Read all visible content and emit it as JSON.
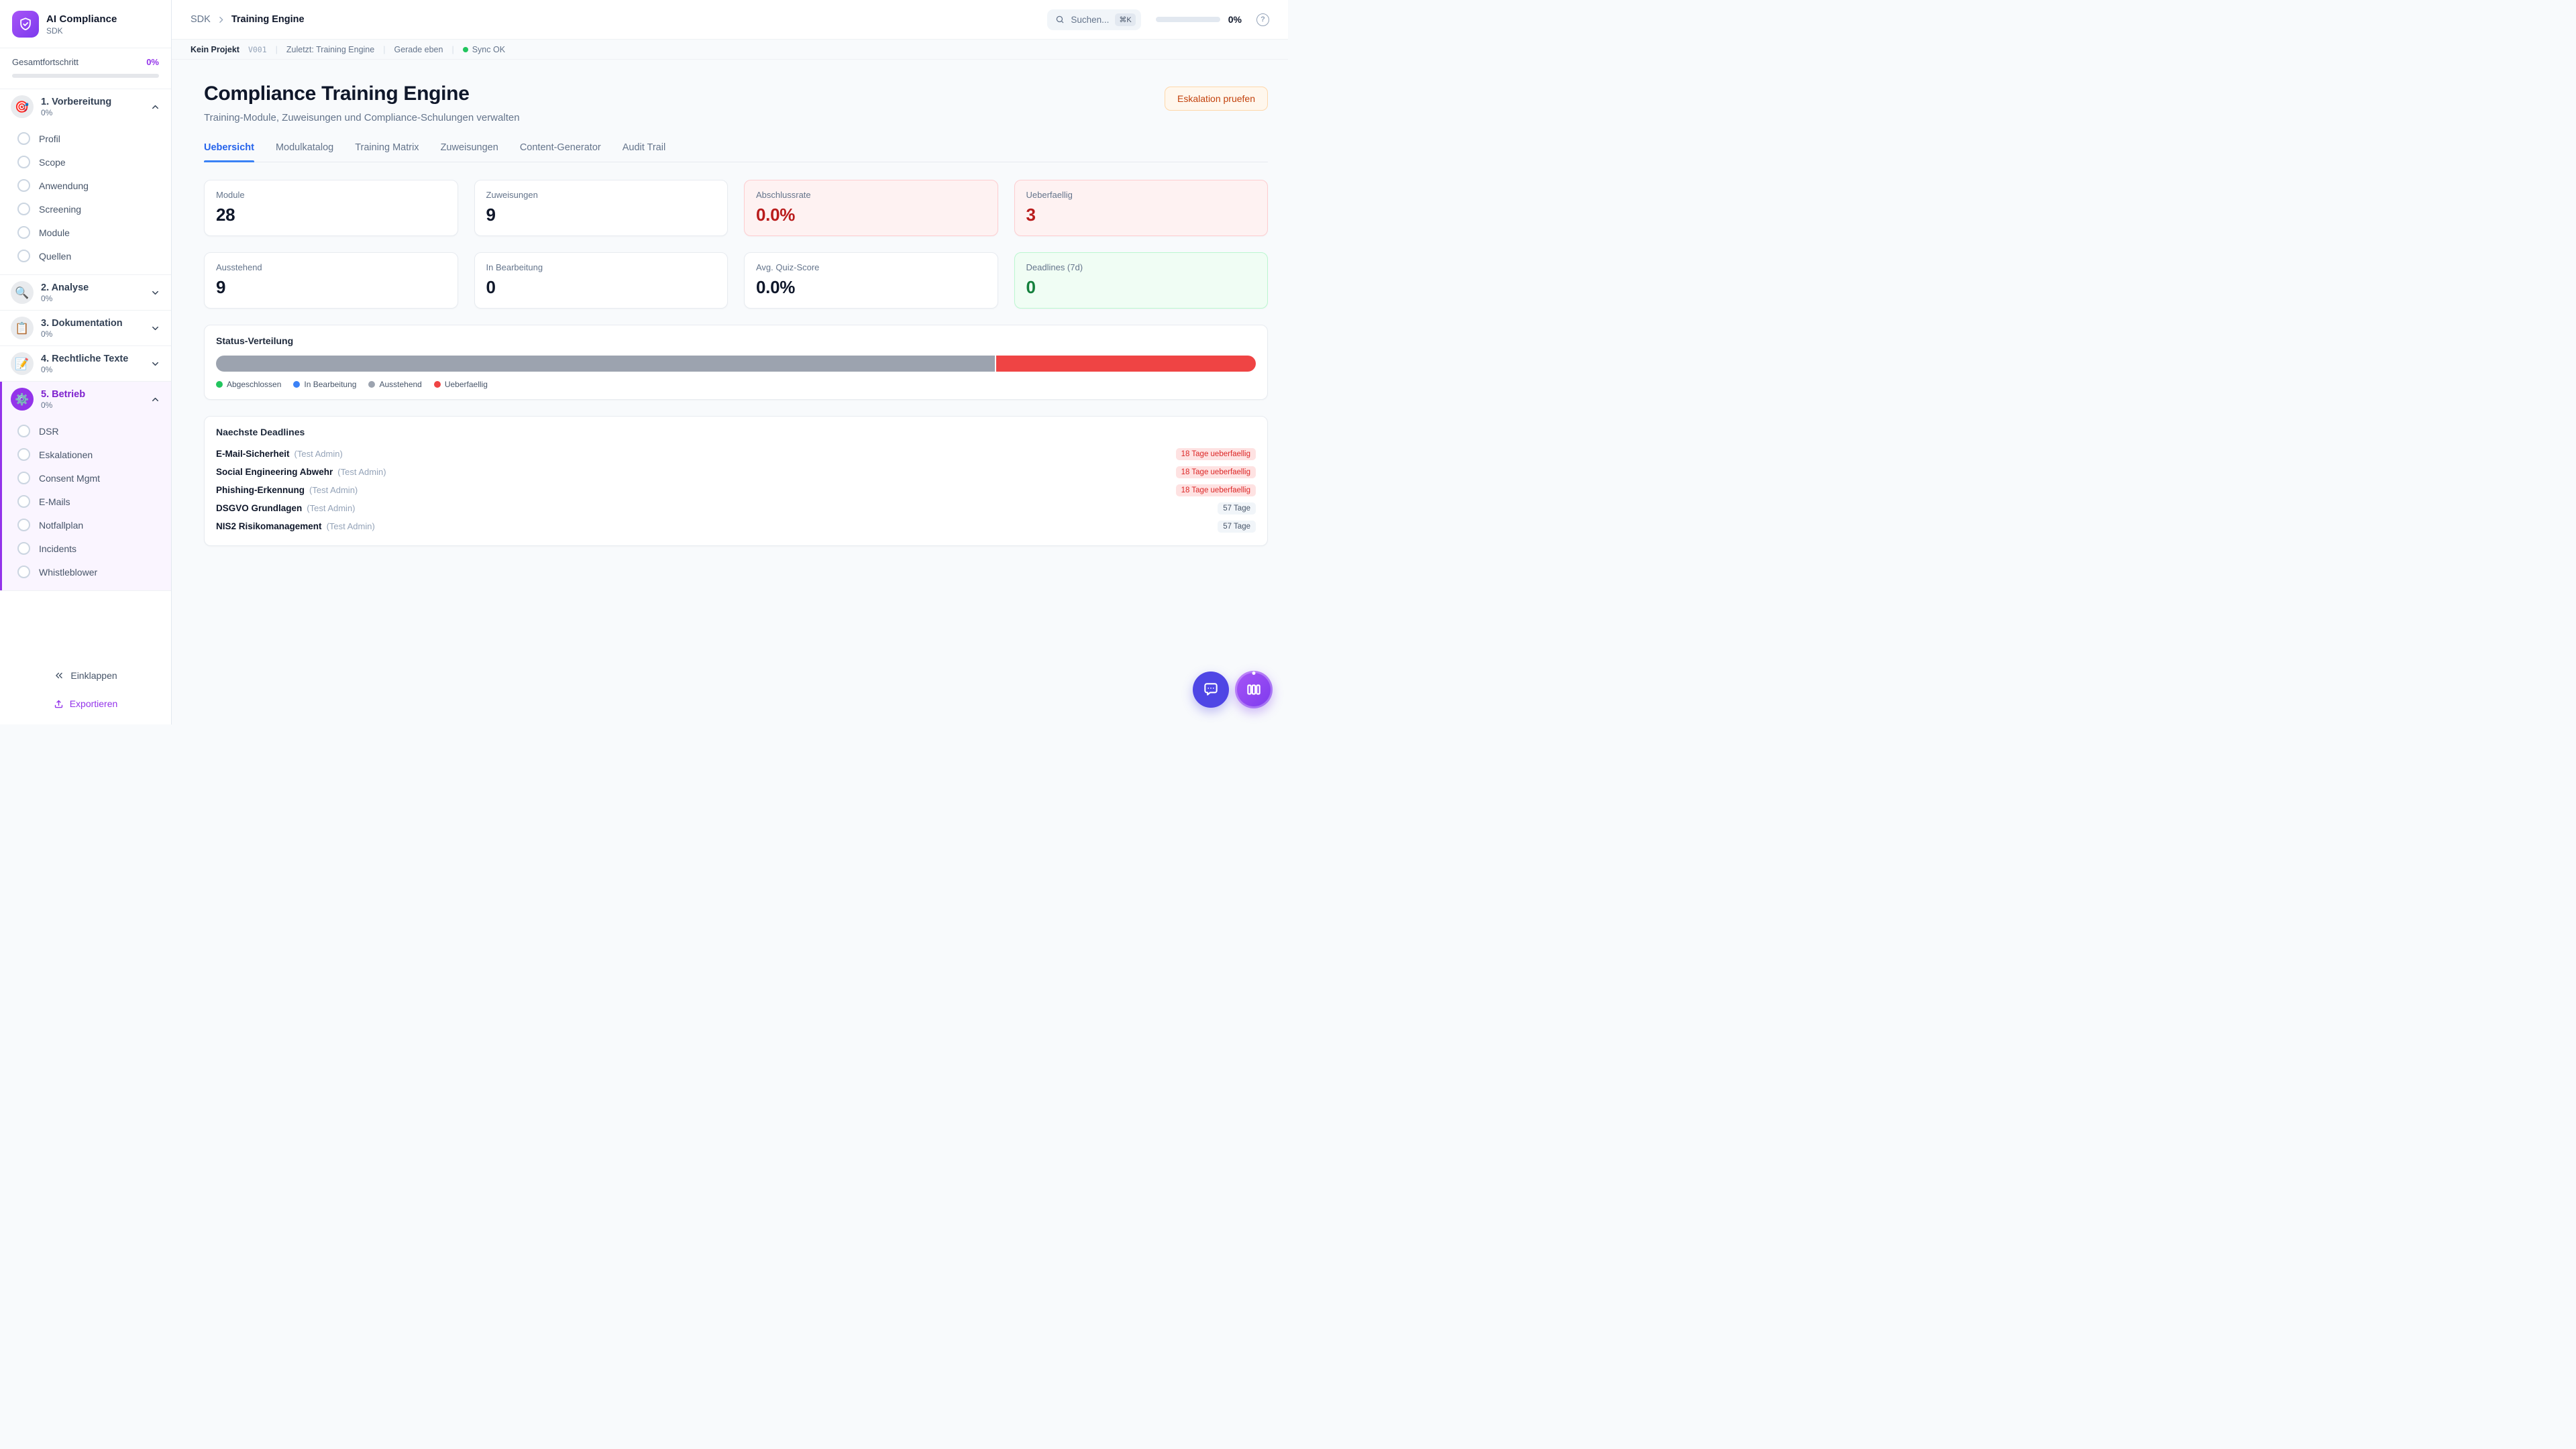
{
  "colors": {
    "accent_purple": "#9333ea",
    "tab_blue": "#2563eb",
    "danger_red": "#dc2626",
    "success_green": "#15803d",
    "sync_green": "#22c55e",
    "bar_gray": "#9ca3af",
    "bar_red": "#ef4444",
    "legend_green": "#22c55e",
    "legend_blue": "#3b82f6"
  },
  "sidebar": {
    "app_title": "AI Compliance",
    "app_subtitle": "SDK",
    "progress_label": "Gesamtfortschritt",
    "progress_value": "0%",
    "sections": [
      {
        "label": "1. Vorbereitung",
        "pct": "0%",
        "icon": "🎯",
        "icon_name": "target-icon",
        "expanded": true,
        "active": false,
        "items": [
          "Profil",
          "Scope",
          "Anwendung",
          "Screening",
          "Module",
          "Quellen"
        ]
      },
      {
        "label": "2. Analyse",
        "pct": "0%",
        "icon": "🔍",
        "icon_name": "magnifier-icon",
        "expanded": false,
        "active": false,
        "items": []
      },
      {
        "label": "3. Dokumentation",
        "pct": "0%",
        "icon": "📋",
        "icon_name": "clipboard-icon",
        "expanded": false,
        "active": false,
        "items": []
      },
      {
        "label": "4. Rechtliche Texte",
        "pct": "0%",
        "icon": "📝",
        "icon_name": "memo-icon",
        "expanded": false,
        "active": false,
        "items": []
      },
      {
        "label": "5. Betrieb",
        "pct": "0%",
        "icon": "⚙️",
        "icon_name": "gear-icon",
        "expanded": true,
        "active": true,
        "items": [
          "DSR",
          "Eskalationen",
          "Consent Mgmt",
          "E-Mails",
          "Notfallplan",
          "Incidents",
          "Whistleblower"
        ]
      }
    ],
    "collapse_label": "Einklappen",
    "export_label": "Exportieren"
  },
  "topbar": {
    "breadcrumb_root": "SDK",
    "breadcrumb_current": "Training Engine",
    "search_placeholder": "Suchen...",
    "search_shortcut": "⌘K",
    "progress_value": "0%",
    "help_glyph": "?"
  },
  "statusbar": {
    "project": "Kein Projekt",
    "version": "V001",
    "last_edited": "Zuletzt: Training Engine",
    "time": "Gerade eben",
    "sync": "Sync OK"
  },
  "page": {
    "title": "Compliance Training Engine",
    "subtitle": "Training-Module, Zuweisungen und Compliance-Schulungen verwalten",
    "action_label": "Eskalation pruefen",
    "tabs": [
      {
        "label": "Uebersicht",
        "active": true
      },
      {
        "label": "Modulkatalog",
        "active": false
      },
      {
        "label": "Training Matrix",
        "active": false
      },
      {
        "label": "Zuweisungen",
        "active": false
      },
      {
        "label": "Content-Generator",
        "active": false
      },
      {
        "label": "Audit Trail",
        "active": false
      }
    ]
  },
  "stats": [
    {
      "label": "Module",
      "value": "28",
      "variant": "default"
    },
    {
      "label": "Zuweisungen",
      "value": "9",
      "variant": "default"
    },
    {
      "label": "Abschlussrate",
      "value": "0.0%",
      "variant": "danger"
    },
    {
      "label": "Ueberfaellig",
      "value": "3",
      "variant": "danger"
    },
    {
      "label": "Ausstehend",
      "value": "9",
      "variant": "default"
    },
    {
      "label": "In Bearbeitung",
      "value": "0",
      "variant": "default"
    },
    {
      "label": "Avg. Quiz-Score",
      "value": "0.0%",
      "variant": "default"
    },
    {
      "label": "Deadlines (7d)",
      "value": "0",
      "variant": "success"
    }
  ],
  "chart_data": {
    "type": "bar",
    "title": "Status-Verteilung",
    "segments": [
      {
        "label": "Ausstehend",
        "pct": 75,
        "color": "#9ca3af"
      },
      {
        "label": "Ueberfaellig",
        "pct": 25,
        "color": "#ef4444"
      }
    ],
    "legend": [
      {
        "label": "Abgeschlossen",
        "color": "#22c55e"
      },
      {
        "label": "In Bearbeitung",
        "color": "#3b82f6"
      },
      {
        "label": "Ausstehend",
        "color": "#9ca3af"
      },
      {
        "label": "Ueberfaellig",
        "color": "#ef4444"
      }
    ]
  },
  "deadlines": {
    "title": "Naechste Deadlines",
    "items": [
      {
        "module": "E-Mail-Sicherheit",
        "assignee": "(Test Admin)",
        "badge": "18 Tage ueberfaellig",
        "overdue": true
      },
      {
        "module": "Social Engineering Abwehr",
        "assignee": "(Test Admin)",
        "badge": "18 Tage ueberfaellig",
        "overdue": true
      },
      {
        "module": "Phishing-Erkennung",
        "assignee": "(Test Admin)",
        "badge": "18 Tage ueberfaellig",
        "overdue": true
      },
      {
        "module": "DSGVO Grundlagen",
        "assignee": "(Test Admin)",
        "badge": "57 Tage",
        "overdue": false
      },
      {
        "module": "NIS2 Risikomanagement",
        "assignee": "(Test Admin)",
        "badge": "57 Tage",
        "overdue": false
      }
    ]
  }
}
